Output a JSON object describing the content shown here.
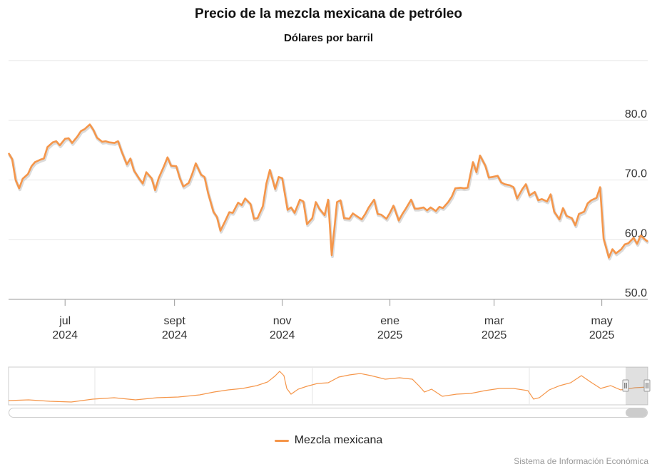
{
  "title": "Precio de la mezcla mexicana de petróleo",
  "subtitle": "Dólares por barril",
  "credits": "Sistema de Información Económica",
  "colors": {
    "series": "#f5964a",
    "shadow": "#bdbdbd",
    "grid": "#e6e6e6"
  },
  "chart_data": {
    "type": "line",
    "title": "Precio de la mezcla mexicana de petróleo",
    "subtitle": "Dólares por barril",
    "ylim": [
      50,
      90
    ],
    "y_ticks": [
      "50.0",
      "60.0",
      "70.0",
      "80.0"
    ],
    "x_ticks": [
      {
        "month": "jul",
        "year": "2024",
        "date": "2024-07-01"
      },
      {
        "month": "sept",
        "year": "2024",
        "date": "2024-09-01"
      },
      {
        "month": "nov",
        "year": "2024",
        "date": "2024-11-01"
      },
      {
        "month": "ene",
        "year": "2025",
        "date": "2025-01-01"
      },
      {
        "month": "mar",
        "year": "2025",
        "date": "2025-03-01"
      },
      {
        "month": "may",
        "year": "2025",
        "date": "2025-05-01"
      }
    ],
    "xlim": [
      "2024-05-30",
      "2025-05-27"
    ],
    "grid": true,
    "legend_position": "bottom",
    "series": [
      {
        "name": "Mezcla mexicana",
        "points": [
          [
            "2024-05-30",
            74.5
          ],
          [
            "2024-06-01",
            73.5
          ],
          [
            "2024-06-03",
            70.0
          ],
          [
            "2024-06-05",
            68.6
          ],
          [
            "2024-06-07",
            70.2
          ],
          [
            "2024-06-10",
            71.0
          ],
          [
            "2024-06-12",
            72.3
          ],
          [
            "2024-06-14",
            73.0
          ],
          [
            "2024-06-17",
            73.4
          ],
          [
            "2024-06-19",
            73.6
          ],
          [
            "2024-06-21",
            75.5
          ],
          [
            "2024-06-24",
            76.3
          ],
          [
            "2024-06-26",
            76.5
          ],
          [
            "2024-06-28",
            75.8
          ],
          [
            "2024-07-01",
            76.9
          ],
          [
            "2024-07-03",
            77.0
          ],
          [
            "2024-07-05",
            76.2
          ],
          [
            "2024-07-08",
            77.3
          ],
          [
            "2024-07-10",
            78.2
          ],
          [
            "2024-07-12",
            78.5
          ],
          [
            "2024-07-15",
            79.3
          ],
          [
            "2024-07-17",
            78.4
          ],
          [
            "2024-07-19",
            77.1
          ],
          [
            "2024-07-22",
            76.4
          ],
          [
            "2024-07-24",
            76.5
          ],
          [
            "2024-07-26",
            76.3
          ],
          [
            "2024-07-29",
            76.2
          ],
          [
            "2024-07-31",
            76.5
          ],
          [
            "2024-08-02",
            74.8
          ],
          [
            "2024-08-05",
            72.6
          ],
          [
            "2024-08-07",
            73.6
          ],
          [
            "2024-08-09",
            71.6
          ],
          [
            "2024-08-12",
            70.2
          ],
          [
            "2024-08-14",
            69.4
          ],
          [
            "2024-08-16",
            71.3
          ],
          [
            "2024-08-19",
            70.3
          ],
          [
            "2024-08-21",
            68.3
          ],
          [
            "2024-08-23",
            70.3
          ],
          [
            "2024-08-26",
            72.3
          ],
          [
            "2024-08-28",
            73.8
          ],
          [
            "2024-08-30",
            72.4
          ],
          [
            "2024-09-02",
            72.3
          ],
          [
            "2024-09-04",
            70.3
          ],
          [
            "2024-09-06",
            68.9
          ],
          [
            "2024-09-09",
            69.5
          ],
          [
            "2024-09-11",
            71.0
          ],
          [
            "2024-09-13",
            72.8
          ],
          [
            "2024-09-16",
            70.9
          ],
          [
            "2024-09-18",
            70.5
          ],
          [
            "2024-09-20",
            67.8
          ],
          [
            "2024-09-23",
            64.7
          ],
          [
            "2024-09-25",
            63.8
          ],
          [
            "2024-09-27",
            61.5
          ],
          [
            "2024-09-30",
            63.3
          ],
          [
            "2024-10-02",
            64.6
          ],
          [
            "2024-10-04",
            64.5
          ],
          [
            "2024-10-07",
            66.2
          ],
          [
            "2024-10-09",
            65.8
          ],
          [
            "2024-10-11",
            66.9
          ],
          [
            "2024-10-14",
            66.0
          ],
          [
            "2024-10-16",
            63.5
          ],
          [
            "2024-10-18",
            63.6
          ],
          [
            "2024-10-21",
            65.6
          ],
          [
            "2024-10-23",
            69.4
          ],
          [
            "2024-10-25",
            71.7
          ],
          [
            "2024-10-28",
            68.5
          ],
          [
            "2024-10-30",
            70.5
          ],
          [
            "2024-11-01",
            70.3
          ],
          [
            "2024-11-04",
            65.0
          ],
          [
            "2024-11-06",
            65.4
          ],
          [
            "2024-11-08",
            64.5
          ],
          [
            "2024-11-11",
            66.7
          ],
          [
            "2024-11-13",
            66.4
          ],
          [
            "2024-11-15",
            62.6
          ],
          [
            "2024-11-18",
            63.6
          ],
          [
            "2024-11-20",
            66.3
          ],
          [
            "2024-11-22",
            65.2
          ],
          [
            "2024-11-25",
            64.1
          ],
          [
            "2024-11-27",
            66.7
          ],
          [
            "2024-11-29",
            57.4
          ],
          [
            "2024-12-02",
            66.3
          ],
          [
            "2024-12-04",
            66.6
          ],
          [
            "2024-12-06",
            63.6
          ],
          [
            "2024-12-09",
            63.5
          ],
          [
            "2024-12-11",
            64.4
          ],
          [
            "2024-12-13",
            64.0
          ],
          [
            "2024-12-16",
            63.4
          ],
          [
            "2024-12-18",
            64.3
          ],
          [
            "2024-12-20",
            65.4
          ],
          [
            "2024-12-23",
            66.7
          ],
          [
            "2024-12-25",
            64.3
          ],
          [
            "2024-12-27",
            64.2
          ],
          [
            "2024-12-30",
            63.5
          ],
          [
            "2025-01-01",
            64.5
          ],
          [
            "2025-01-03",
            65.7
          ],
          [
            "2025-01-06",
            63.2
          ],
          [
            "2025-01-08",
            64.3
          ],
          [
            "2025-01-10",
            65.2
          ],
          [
            "2025-01-13",
            66.7
          ],
          [
            "2025-01-15",
            65.2
          ],
          [
            "2025-01-17",
            65.2
          ],
          [
            "2025-01-20",
            65.4
          ],
          [
            "2025-01-22",
            64.9
          ],
          [
            "2025-01-24",
            65.4
          ],
          [
            "2025-01-27",
            64.8
          ],
          [
            "2025-01-29",
            65.5
          ],
          [
            "2025-01-31",
            65.3
          ],
          [
            "2025-02-03",
            66.3
          ],
          [
            "2025-02-05",
            67.2
          ],
          [
            "2025-02-07",
            68.6
          ],
          [
            "2025-02-10",
            68.7
          ],
          [
            "2025-02-12",
            68.6
          ],
          [
            "2025-02-14",
            68.7
          ],
          [
            "2025-02-17",
            73.0
          ],
          [
            "2025-02-19",
            71.3
          ],
          [
            "2025-02-21",
            74.1
          ],
          [
            "2025-02-24",
            72.4
          ],
          [
            "2025-02-26",
            70.4
          ],
          [
            "2025-02-28",
            70.5
          ],
          [
            "2025-03-03",
            70.7
          ],
          [
            "2025-03-05",
            69.6
          ],
          [
            "2025-03-07",
            69.3
          ],
          [
            "2025-03-10",
            69.1
          ],
          [
            "2025-03-12",
            68.8
          ],
          [
            "2025-03-14",
            66.9
          ],
          [
            "2025-03-17",
            68.5
          ],
          [
            "2025-03-19",
            69.3
          ],
          [
            "2025-03-21",
            67.4
          ],
          [
            "2025-03-24",
            68.0
          ],
          [
            "2025-03-26",
            66.6
          ],
          [
            "2025-03-28",
            66.8
          ],
          [
            "2025-03-31",
            66.4
          ],
          [
            "2025-04-02",
            67.6
          ],
          [
            "2025-04-04",
            64.7
          ],
          [
            "2025-04-07",
            63.4
          ],
          [
            "2025-04-09",
            65.3
          ],
          [
            "2025-04-11",
            64.0
          ],
          [
            "2025-04-14",
            63.6
          ],
          [
            "2025-04-16",
            62.4
          ],
          [
            "2025-04-18",
            64.3
          ],
          [
            "2025-04-21",
            64.7
          ],
          [
            "2025-04-23",
            66.1
          ],
          [
            "2025-04-25",
            66.6
          ],
          [
            "2025-04-28",
            67.0
          ],
          [
            "2025-04-30",
            68.8
          ],
          [
            "2025-05-02",
            60.2
          ],
          [
            "2025-05-05",
            57.0
          ],
          [
            "2025-05-07",
            58.4
          ],
          [
            "2025-05-09",
            57.7
          ],
          [
            "2025-05-12",
            58.4
          ],
          [
            "2025-05-14",
            59.2
          ],
          [
            "2025-05-16",
            59.4
          ],
          [
            "2025-05-19",
            60.3
          ],
          [
            "2025-05-21",
            59.3
          ],
          [
            "2025-05-23",
            60.7
          ],
          [
            "2025-05-26",
            59.9
          ],
          [
            "2025-05-27",
            59.7
          ]
        ]
      }
    ]
  },
  "legend": {
    "label": "Mezcla mexicana"
  }
}
